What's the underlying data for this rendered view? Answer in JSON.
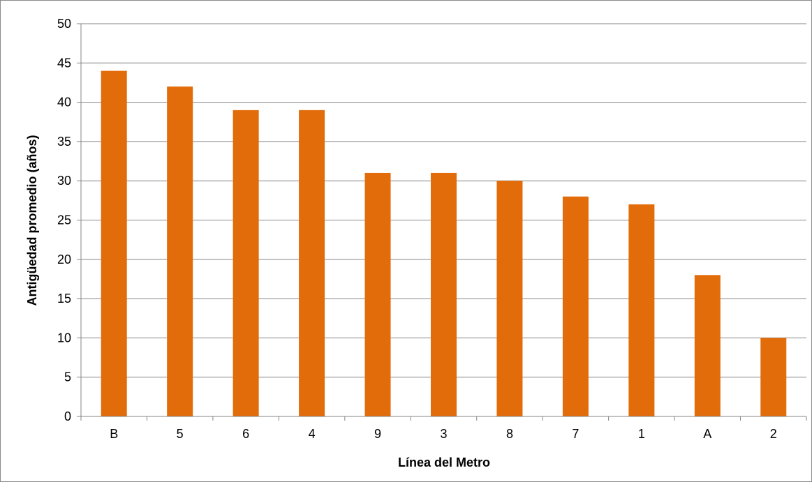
{
  "chart_data": {
    "type": "bar",
    "title": "",
    "xlabel": "Línea del Metro",
    "ylabel": "Antigüedad promedio (años)",
    "categories": [
      "B",
      "5",
      "6",
      "4",
      "9",
      "3",
      "8",
      "7",
      "1",
      "A",
      "2"
    ],
    "values": [
      44,
      42,
      39,
      39,
      31,
      31,
      30,
      28,
      27,
      18,
      10
    ],
    "ylim": [
      0,
      50
    ],
    "yticks": [
      0,
      5,
      10,
      15,
      20,
      25,
      30,
      35,
      40,
      45,
      50
    ],
    "grid": true,
    "legend": "none",
    "bar_color": "#E36C0A",
    "grid_color": "#868686"
  }
}
